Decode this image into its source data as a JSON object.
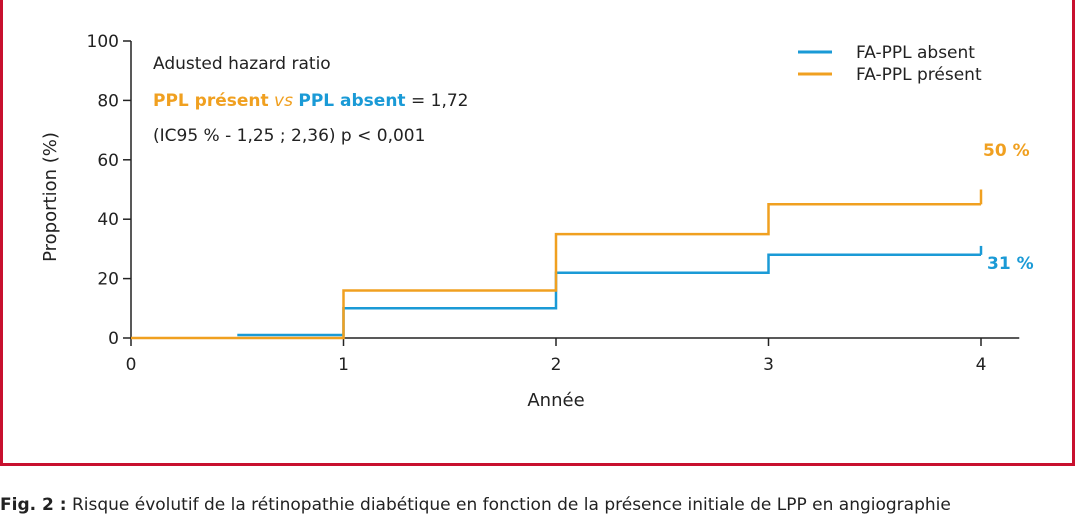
{
  "chart_data": {
    "type": "line",
    "step": true,
    "xlabel": "Année",
    "ylabel": "Proportion (%)",
    "xlim": [
      0,
      4.18
    ],
    "ylim": [
      0,
      100
    ],
    "xticks": [
      0,
      1,
      2,
      3,
      4
    ],
    "yticks": [
      0,
      20,
      40,
      60,
      80,
      100
    ],
    "grid": false,
    "legend_position": "top-right",
    "series": [
      {
        "name": "FA-PPL absent",
        "color": "#1a9ad6",
        "x": [
          0.5,
          1.0,
          1.0,
          2.0,
          2.0,
          3.0,
          3.0,
          4.0
        ],
        "y": [
          1,
          1,
          10,
          10,
          22,
          22,
          28,
          28
        ],
        "end_value": 31,
        "end_label": "31 %"
      },
      {
        "name": "FA-PPL présent",
        "color": "#f0a020",
        "x": [
          0.0,
          1.0,
          1.0,
          2.0,
          2.0,
          3.0,
          3.0,
          4.0
        ],
        "y": [
          0,
          0,
          16,
          16,
          35,
          35,
          45,
          45
        ],
        "end_value": 50,
        "end_label": "50 %"
      }
    ],
    "annotation": {
      "line1": "Adusted hazard ratio",
      "line2_part1": "PPL présent",
      "line2_part2": "vs",
      "line2_part3": "PPL absent",
      "line2_part4": "= 1,72",
      "line3": "(IC95 % - 1,25 ; 2,36) p < 0,001"
    }
  },
  "caption": {
    "label": "Fig. 2 :",
    "text": "Risque évolutif de la rétinopathie diabétique en fonction de la présence initiale de LPP en angiographie"
  }
}
